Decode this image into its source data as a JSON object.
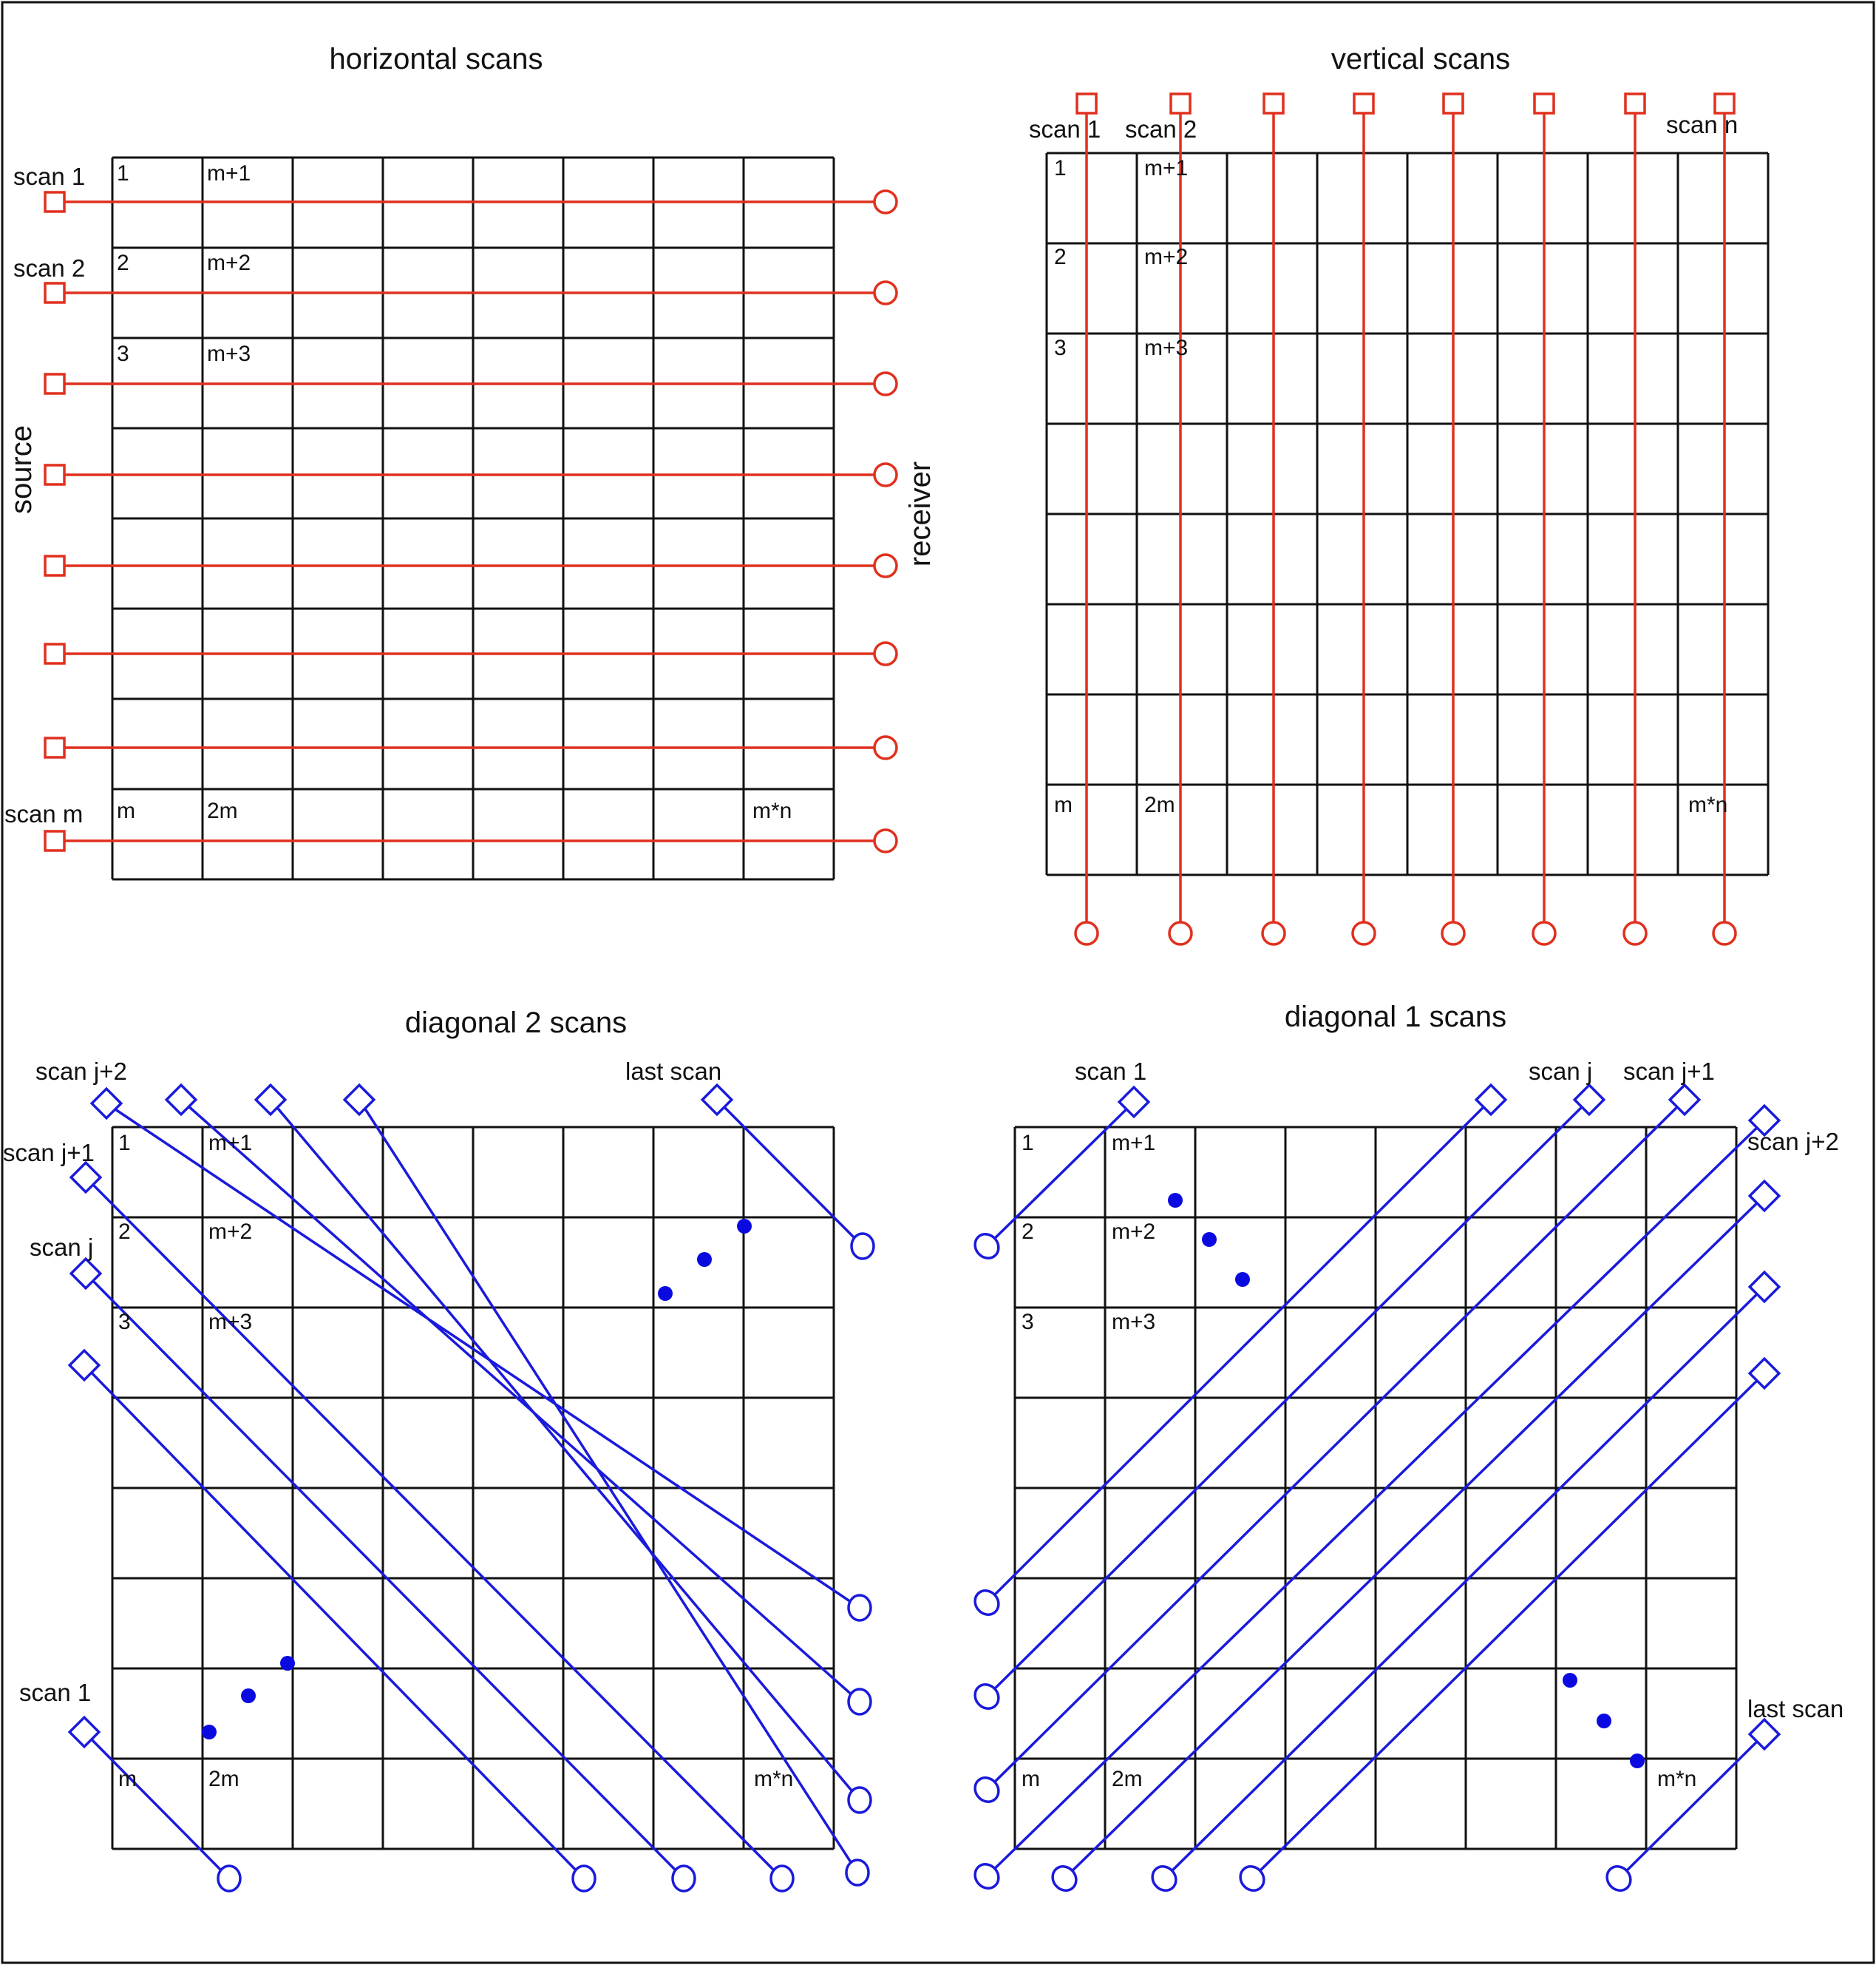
{
  "panels": {
    "horizontal": {
      "title": "horizontal scans",
      "source_label": "source",
      "receiver_label": "receiver",
      "scan_labels": [
        "scan 1",
        "scan 2",
        "scan m"
      ],
      "cell_labels": [
        "1",
        "m+1",
        "2",
        "m+2",
        "3",
        "m+3",
        "m",
        "2m",
        "m*n"
      ]
    },
    "vertical": {
      "title": "vertical scans",
      "scan_labels": [
        "scan 1",
        "scan 2",
        "scan n"
      ],
      "cell_labels": [
        "1",
        "m+1",
        "2",
        "m+2",
        "3",
        "m+3",
        "m",
        "2m",
        "m*n"
      ]
    },
    "diag2": {
      "title": "diagonal 2 scans",
      "scan_labels": [
        "scan j+2",
        "scan j+1",
        "scan j",
        "scan 1",
        "last scan"
      ],
      "cell_labels": [
        "1",
        "m+1",
        "2",
        "m+2",
        "3",
        "m+3",
        "m",
        "2m",
        "m*n"
      ]
    },
    "diag1": {
      "title": "diagonal 1 scans",
      "scan_labels": [
        "scan 1",
        "scan j",
        "scan j+1",
        "scan j+2",
        "last scan"
      ],
      "cell_labels": [
        "1",
        "m+1",
        "2",
        "m+2",
        "3",
        "m+3",
        "m",
        "2m",
        "m*n"
      ]
    }
  },
  "colors": {
    "grid": "#111111",
    "ray_horizontal_vertical": "#e0301e",
    "ray_diagonal": "#1a1adc",
    "dots": "#0a0ae0"
  }
}
